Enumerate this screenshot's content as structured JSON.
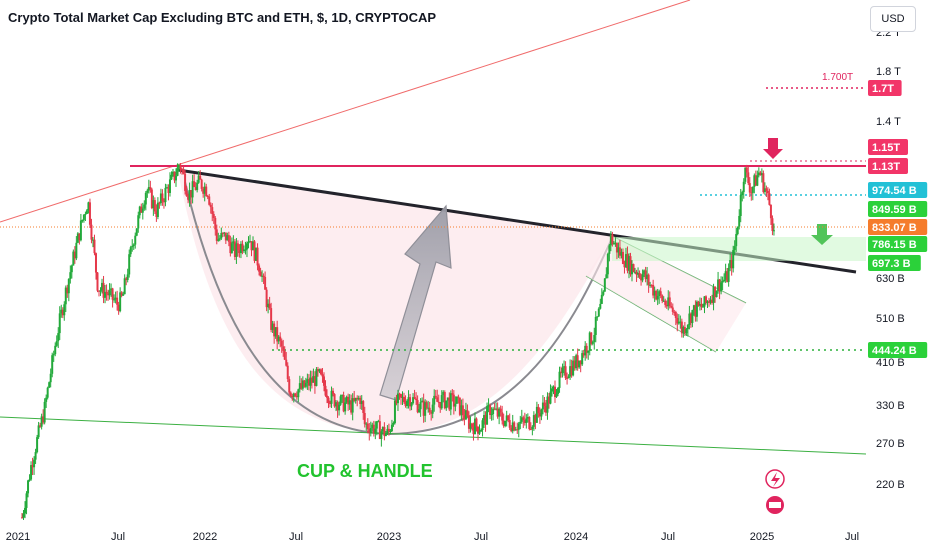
{
  "header": {
    "title": "Crypto Total Market Cap Excluding BTC and ETH, $, 1D, CRYPTOCAP",
    "currency": "USD"
  },
  "chart_data": {
    "type": "line",
    "title": "Crypto Total Market Cap Excluding BTC and ETH, $, 1D, CRYPTOCAP",
    "y_scale": "log",
    "ylabel": "USD",
    "ylim": [
      175,
      2300
    ],
    "xlim": [
      "2021-01-01",
      "2025-07-20"
    ],
    "x_ticks": [
      "2021",
      "Jul",
      "2022",
      "Jul",
      "2023",
      "Jul",
      "2024",
      "Jul",
      "2025",
      "Jul"
    ],
    "y_ticks": [
      "2.2 T",
      "1.8 T",
      "1.4 T",
      "630 B",
      "510 B",
      "410 B",
      "330 B",
      "270 B",
      "220 B"
    ],
    "series": [
      {
        "x": [
          "2021-01-01",
          "2021-01-20",
          "2021-02-15",
          "2021-03-10",
          "2021-04-01",
          "2021-05-01",
          "2021-05-12",
          "2021-06-01",
          "2021-06-22",
          "2021-07-10",
          "2021-07-20",
          "2021-08-10",
          "2021-09-05",
          "2021-09-25",
          "2021-10-15",
          "2021-11-05",
          "2021-11-10",
          "2021-11-28",
          "2021-12-20",
          "2022-01-05",
          "2022-01-24",
          "2022-02-10",
          "2022-02-28",
          "2022-03-28",
          "2022-04-20",
          "2022-05-12",
          "2022-06-01",
          "2022-06-18",
          "2022-07-10",
          "2022-08-14",
          "2022-09-05",
          "2022-09-25",
          "2022-10-20",
          "2022-11-05",
          "2022-11-12",
          "2022-12-01",
          "2022-12-30",
          "2023-01-15",
          "2023-02-10",
          "2023-03-10",
          "2023-04-15",
          "2023-05-15",
          "2023-06-10",
          "2023-07-01",
          "2023-07-20",
          "2023-08-20",
          "2023-09-12",
          "2023-10-10",
          "2023-11-10",
          "2023-12-10",
          "2024-01-10",
          "2024-02-10",
          "2024-03-01",
          "2024-03-14",
          "2024-04-05",
          "2024-04-15",
          "2024-05-01",
          "2024-05-20",
          "2024-06-10",
          "2024-07-05",
          "2024-07-25",
          "2024-08-05",
          "2024-08-25",
          "2024-09-20",
          "2024-10-15",
          "2024-11-01",
          "2024-11-15",
          "2024-12-06",
          "2024-12-20",
          "2025-01-05",
          "2025-01-20",
          "2025-01-28",
          "2025-02-03"
        ],
        "y": [
          190,
          250,
          330,
          470,
          620,
          860,
          950,
          610,
          590,
          560,
          580,
          780,
          1010,
          900,
          1000,
          1100,
          1150,
          980,
          1040,
          1000,
          780,
          790,
          730,
          790,
          670,
          500,
          450,
          360,
          365,
          390,
          350,
          340,
          335,
          350,
          305,
          300,
          290,
          340,
          350,
          330,
          345,
          340,
          305,
          300,
          330,
          310,
          305,
          310,
          340,
          390,
          420,
          480,
          580,
          790,
          720,
          700,
          670,
          650,
          600,
          560,
          530,
          490,
          540,
          560,
          620,
          640,
          720,
          1110,
          1000,
          1100,
          980,
          900,
          800
        ]
      }
    ],
    "price_levels": [
      {
        "label": "1.15T",
        "value": 1150,
        "color": "#f23568"
      },
      {
        "label": "1.13T",
        "value": 1130,
        "color": "#f23568"
      },
      {
        "label": "974.54 B",
        "value": 974.54,
        "color": "#22c1d6"
      },
      {
        "label": "849.59 B",
        "value": 849.59,
        "color": "#2bd13a"
      },
      {
        "label": "833.07 B",
        "value": 833.07,
        "color": "#f57c2c"
      },
      {
        "label": "786.15 B",
        "value": 786.15,
        "color": "#2bd13a"
      },
      {
        "label": "697.3 B",
        "value": 697.3,
        "color": "#2bd13a"
      },
      {
        "label": "444.24 B",
        "value": 444.24,
        "color": "#2bd13a"
      },
      {
        "label": "1.7T",
        "value": 1700,
        "color": "#f23568"
      }
    ],
    "target_marker": "1.700T",
    "annotations": [
      "CUP & HANDLE"
    ]
  }
}
